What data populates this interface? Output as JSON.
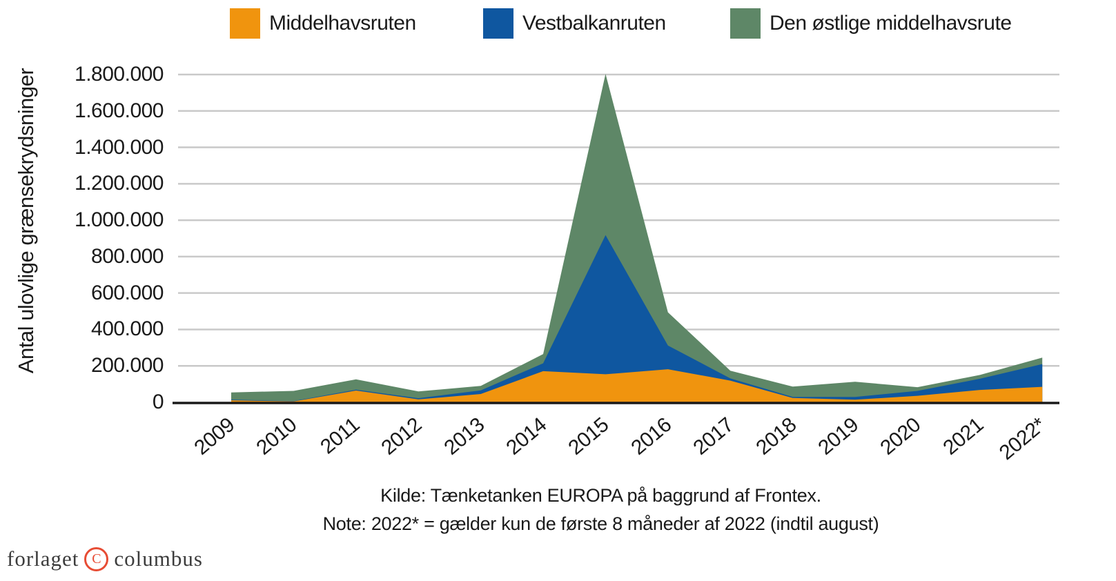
{
  "chart_data": {
    "type": "area",
    "stacked": true,
    "ylabel": "Antal ulovlige grænsekrydsninger",
    "categories": [
      "2009",
      "2010",
      "2011",
      "2012",
      "2013",
      "2014",
      "2015",
      "2016",
      "2017",
      "2018",
      "2019",
      "2020",
      "2021",
      "2022*"
    ],
    "series": [
      {
        "name": "Middelhavsruten",
        "color": "#F0940E",
        "values": [
          11000,
          4500,
          64300,
          15900,
          45300,
          170800,
          154000,
          181500,
          119000,
          23500,
          14000,
          35700,
          67700,
          85000
        ]
      },
      {
        "name": "Vestbalkanruten",
        "color": "#0F57A0",
        "values": [
          3100,
          2400,
          4700,
          6400,
          20000,
          43400,
          764000,
          130300,
          12200,
          5900,
          15200,
          26900,
          61700,
          125000
        ]
      },
      {
        "name": "Den østlige middelhavsrute",
        "color": "#5E8767",
        "values": [
          40000,
          55700,
          57000,
          37200,
          24800,
          50800,
          885400,
          182300,
          42300,
          56600,
          83300,
          20300,
          20600,
          35000
        ]
      }
    ],
    "ylim": [
      0,
      1800000
    ],
    "ytick_step": 200000,
    "ytick_labels": [
      "0",
      "200.000",
      "400.000",
      "600.000",
      "800.000",
      "1.000.000",
      "1.200.000",
      "1.400.000",
      "1.600.000",
      "1.800.000"
    ],
    "grid": "horizontal",
    "grid_color": "#C9C9C9",
    "axis_color": "#1A1A1A",
    "legend_position": "top"
  },
  "source_line": "Kilde: Tænketanken EUROPA på baggrund af Frontex.",
  "note_line": "Note: 2022* = gælder kun de første 8 måneder af 2022 (indtil august)",
  "logo": {
    "prefix": "forlaget",
    "symbol": "C",
    "suffix": "columbus",
    "accent_color": "#E74C34"
  }
}
